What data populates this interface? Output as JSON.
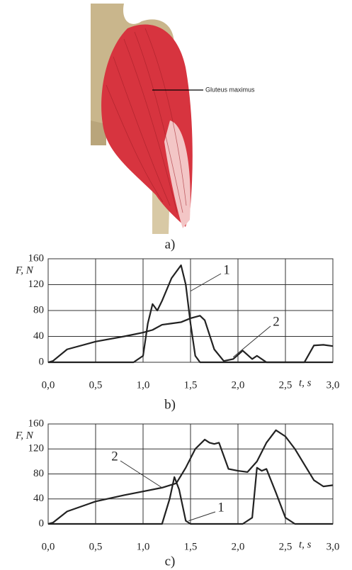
{
  "figure": {
    "label": "Gluteus maximus",
    "caption": "a)"
  },
  "chart_data": [
    {
      "type": "line",
      "caption": "b)",
      "ylabel": "F, N",
      "xlabel": "t, s",
      "xlim": [
        0,
        3
      ],
      "ylim": [
        0,
        160
      ],
      "yticks": [
        0,
        40,
        80,
        120,
        160
      ],
      "xticks": [
        {
          "value": 0,
          "label": "0,0"
        },
        {
          "value": 0.5,
          "label": "0,5"
        },
        {
          "value": 1,
          "label": "1,0"
        },
        {
          "value": 1.5,
          "label": "1,5"
        },
        {
          "value": 2,
          "label": "2,0"
        },
        {
          "value": 2.5,
          "label": "2,5"
        },
        {
          "value": 3,
          "label": "3,0"
        }
      ],
      "grid": true,
      "series": [
        {
          "name": "1",
          "color": "#222222",
          "x": [
            0,
            0.9,
            1.0,
            1.05,
            1.1,
            1.15,
            1.2,
            1.3,
            1.4,
            1.45,
            1.5,
            1.55,
            1.6,
            3.0
          ],
          "values": [
            0,
            0,
            10,
            60,
            90,
            80,
            95,
            130,
            150,
            120,
            60,
            10,
            0,
            0
          ]
        },
        {
          "name": "2",
          "color": "#222222",
          "x": [
            0,
            0.05,
            0.2,
            0.5,
            0.8,
            1.0,
            1.1,
            1.2,
            1.3,
            1.4,
            1.5,
            1.6,
            1.65,
            1.75,
            1.85,
            1.95,
            2.05,
            2.15,
            2.2,
            2.3,
            2.7,
            2.8,
            2.9,
            3.0
          ],
          "values": [
            0,
            2,
            20,
            32,
            40,
            46,
            50,
            58,
            60,
            62,
            68,
            72,
            65,
            20,
            2,
            5,
            18,
            5,
            10,
            0,
            0,
            26,
            27,
            25
          ]
        }
      ]
    },
    {
      "type": "line",
      "caption": "c)",
      "ylabel": "F, N",
      "xlabel": "t, s",
      "xlim": [
        0,
        3
      ],
      "ylim": [
        0,
        160
      ],
      "yticks": [
        0,
        40,
        80,
        120,
        160
      ],
      "xticks": [
        {
          "value": 0,
          "label": "0,0"
        },
        {
          "value": 0.5,
          "label": "0,5"
        },
        {
          "value": 1,
          "label": "1,0"
        },
        {
          "value": 1.5,
          "label": "1,5"
        },
        {
          "value": 2,
          "label": "2,0"
        },
        {
          "value": 2.5,
          "label": "2,5"
        },
        {
          "value": 3,
          "label": "3,0"
        }
      ],
      "grid": true,
      "series": [
        {
          "name": "1",
          "color": "#222222",
          "x": [
            0,
            1.2,
            1.28,
            1.33,
            1.38,
            1.45,
            1.5,
            2.05,
            2.15,
            2.2,
            2.25,
            2.3,
            2.4,
            2.5,
            2.6,
            3.0
          ],
          "values": [
            0,
            0,
            40,
            75,
            55,
            5,
            0,
            0,
            10,
            90,
            85,
            88,
            50,
            10,
            0,
            0
          ]
        },
        {
          "name": "2",
          "color": "#222222",
          "x": [
            0,
            0.05,
            0.2,
            0.5,
            0.8,
            1.0,
            1.2,
            1.35,
            1.45,
            1.55,
            1.65,
            1.7,
            1.75,
            1.8,
            1.9,
            2.0,
            2.1,
            2.2,
            2.3,
            2.4,
            2.5,
            2.6,
            2.7,
            2.8,
            2.9,
            3.0
          ],
          "values": [
            0,
            2,
            20,
            36,
            46,
            52,
            58,
            65,
            90,
            120,
            135,
            130,
            128,
            130,
            88,
            85,
            83,
            100,
            130,
            150,
            140,
            120,
            95,
            70,
            60,
            62
          ]
        }
      ]
    }
  ]
}
